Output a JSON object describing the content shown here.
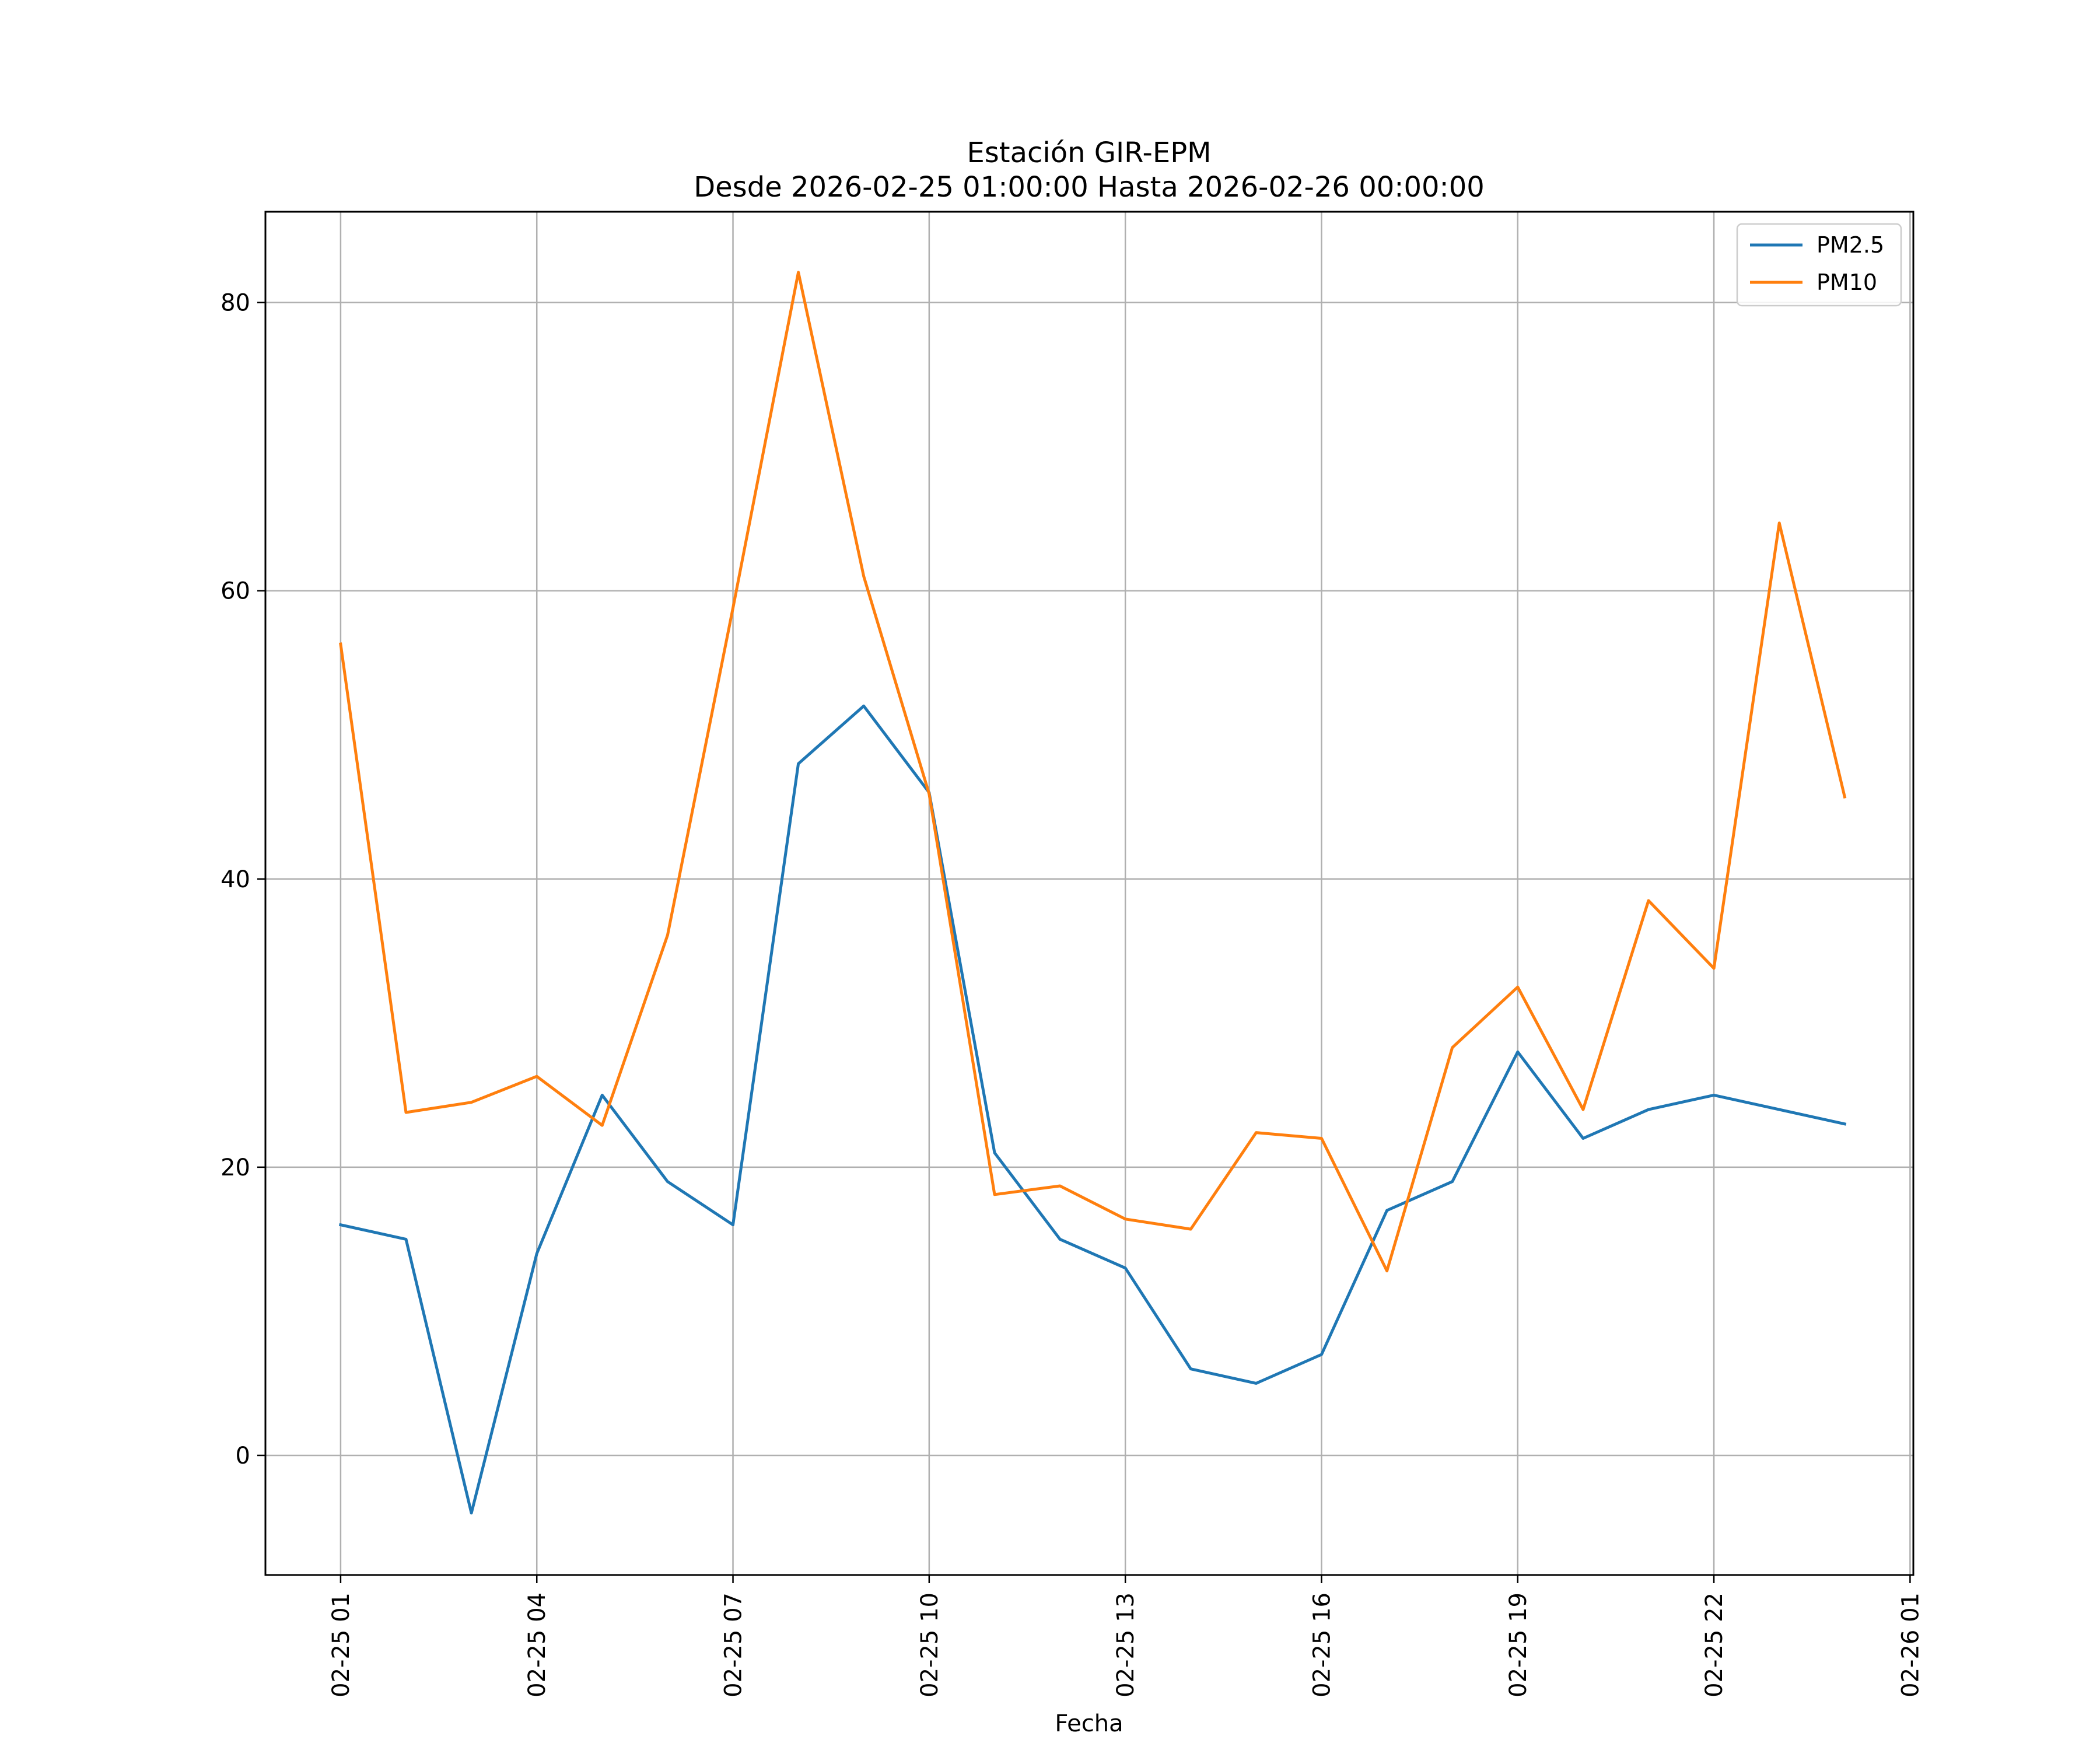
{
  "chart_data": {
    "type": "line",
    "title_line1": "Estación GIR-EPM",
    "title_line2": "Desde 2026-02-25 01:00:00 Hasta 2026-02-26 00:00:00",
    "xlabel": "Fecha",
    "ylabel": "",
    "x_hours": [
      1,
      2,
      3,
      4,
      5,
      6,
      7,
      8,
      9,
      10,
      11,
      12,
      13,
      14,
      15,
      16,
      17,
      18,
      19,
      20,
      21,
      22,
      23,
      24
    ],
    "xlim": [
      -0.15,
      25.05
    ],
    "ylim": [
      -8.3,
      86.3
    ],
    "x_ticks": [
      {
        "hour": 1,
        "label": "02-25 01"
      },
      {
        "hour": 4,
        "label": "02-25 04"
      },
      {
        "hour": 7,
        "label": "02-25 07"
      },
      {
        "hour": 10,
        "label": "02-25 10"
      },
      {
        "hour": 13,
        "label": "02-25 13"
      },
      {
        "hour": 16,
        "label": "02-25 16"
      },
      {
        "hour": 19,
        "label": "02-25 19"
      },
      {
        "hour": 22,
        "label": "02-25 22"
      },
      {
        "hour": 25,
        "label": "02-26 01"
      }
    ],
    "y_ticks": [
      {
        "value": 0,
        "label": "0"
      },
      {
        "value": 20,
        "label": "20"
      },
      {
        "value": 40,
        "label": "40"
      },
      {
        "value": 60,
        "label": "60"
      },
      {
        "value": 80,
        "label": "80"
      }
    ],
    "grid": true,
    "legend_position": "top-right",
    "series": [
      {
        "name": "PM2.5",
        "color": "#1f77b4",
        "values": [
          16,
          15,
          -4,
          14,
          25,
          19,
          16,
          48,
          52,
          46,
          21,
          15,
          13,
          6,
          5,
          7,
          17,
          19,
          28,
          22,
          24,
          25,
          24,
          23
        ]
      },
      {
        "name": "PM10",
        "color": "#ff7f0e",
        "values": [
          56.3,
          23.8,
          24.5,
          26.3,
          22.9,
          36.1,
          58.8,
          82.1,
          61,
          45.9,
          18.1,
          18.7,
          16.4,
          15.7,
          22.4,
          22,
          12.8,
          28.3,
          32.5,
          24,
          38.5,
          33.8,
          64.7,
          45.7
        ]
      }
    ]
  }
}
